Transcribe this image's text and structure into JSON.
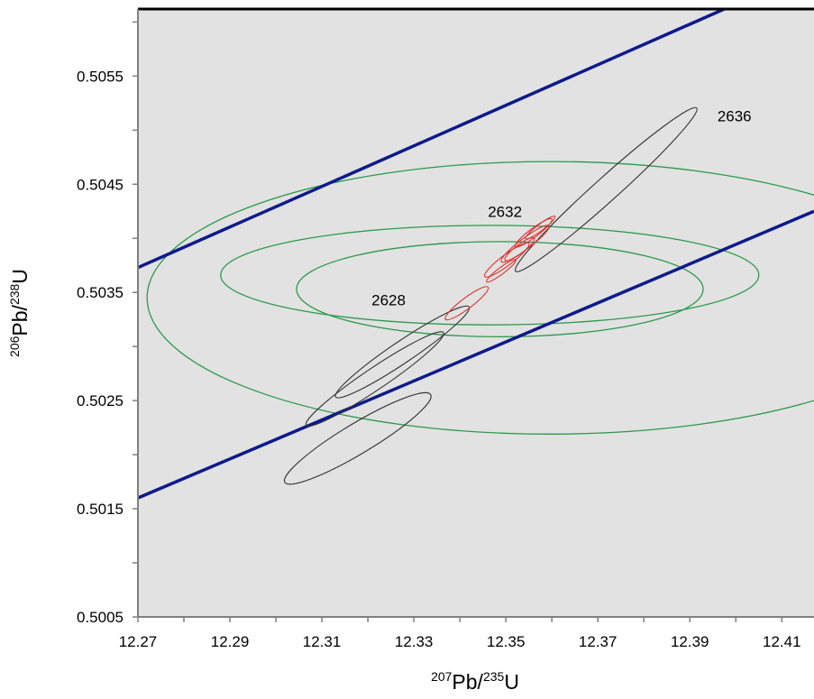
{
  "chart_data": {
    "type": "scatter",
    "title": "",
    "xlabel": {
      "mass_top": "207",
      "element": "Pb/",
      "mass_bottom": "235",
      "element2": "U"
    },
    "ylabel": {
      "mass_top": "206",
      "element": "Pb/",
      "mass_bottom": "238",
      "element2": "U"
    },
    "xlim": [
      12.27,
      12.417
    ],
    "ylim": [
      0.5005,
      0.50612
    ],
    "grid": false,
    "background": "#e2e2e2",
    "x_ticks": [
      "12.27",
      "12.29",
      "12.31",
      "12.33",
      "12.35",
      "12.37",
      "12.39",
      "12.41"
    ],
    "y_ticks": [
      "0.5005",
      "0.5015",
      "0.5025",
      "0.5035",
      "0.5045",
      "0.5055"
    ],
    "concordia_labels": [
      {
        "text": "2628",
        "x": 12.3245,
        "y": 0.50338
      },
      {
        "text": "2632",
        "x": 12.3498,
        "y": 0.5042
      },
      {
        "text": "2636",
        "x": 12.3997,
        "y": 0.50508
      }
    ],
    "concordia_bands": {
      "color": "#0d1a8c",
      "upper": [
        [
          12.27,
          0.50373
        ],
        [
          12.3975,
          0.50612
        ]
      ],
      "lower": [
        [
          12.27,
          0.5016
        ],
        [
          12.417,
          0.50425
        ]
      ]
    },
    "error_ellipses": [
      {
        "group": "population",
        "color": "#2a9a4a",
        "cx": 12.3595,
        "cy": 0.50345,
        "rx": 0.0875,
        "ry": 0.00126
      },
      {
        "group": "population",
        "color": "#2a9a4a",
        "cx": 12.3465,
        "cy": 0.50366,
        "rx": 0.0585,
        "ry": 0.00046
      },
      {
        "group": "population",
        "color": "#2a9a4a",
        "cx": 12.3487,
        "cy": 0.50353,
        "rx": 0.0442,
        "ry": 0.00044
      },
      {
        "group": "sample",
        "color": "#333333",
        "cx": 12.3718,
        "cy": 0.50445,
        "rx": 0.0265,
        "ry": 0.00011,
        "angle": -42
      },
      {
        "group": "sample",
        "color": "#333333",
        "cx": 12.3275,
        "cy": 0.50295,
        "rx": 0.0175,
        "ry": 0.0001,
        "angle": -34
      },
      {
        "group": "sample",
        "color": "#333333",
        "cx": 12.3215,
        "cy": 0.5027,
        "rx": 0.018,
        "ry": 0.0001,
        "angle": -34
      },
      {
        "group": "sample",
        "color": "#333333",
        "cx": 12.3178,
        "cy": 0.50215,
        "rx": 0.0185,
        "ry": 0.00014,
        "angle": -31
      },
      {
        "group": "sample",
        "color": "#e03030",
        "cx": 12.3415,
        "cy": 0.5034,
        "rx": 0.0058,
        "ry": 5e-05,
        "angle": -37
      },
      {
        "group": "sample",
        "color": "#e03030",
        "cx": 12.3502,
        "cy": 0.5038,
        "rx": 0.006,
        "ry": 5e-05,
        "angle": -37
      },
      {
        "group": "sample",
        "color": "#e03030",
        "cx": 12.3542,
        "cy": 0.50395,
        "rx": 0.0065,
        "ry": 5e-05,
        "angle": -37
      },
      {
        "group": "sample",
        "color": "#e03030",
        "cx": 12.356,
        "cy": 0.50405,
        "rx": 0.005,
        "ry": 4e-05,
        "angle": -37
      },
      {
        "group": "sample",
        "color": "#e03030",
        "cx": 12.353,
        "cy": 0.5039,
        "rx": 0.004,
        "ry": 4e-05,
        "angle": -37
      },
      {
        "group": "sample",
        "color": "#e03030",
        "cx": 12.3575,
        "cy": 0.5041,
        "rx": 0.004,
        "ry": 3e-05,
        "angle": -37
      },
      {
        "group": "sample",
        "color": "#e03030",
        "cx": 12.349,
        "cy": 0.5037,
        "rx": 0.004,
        "ry": 3e-05,
        "angle": -37
      }
    ]
  }
}
